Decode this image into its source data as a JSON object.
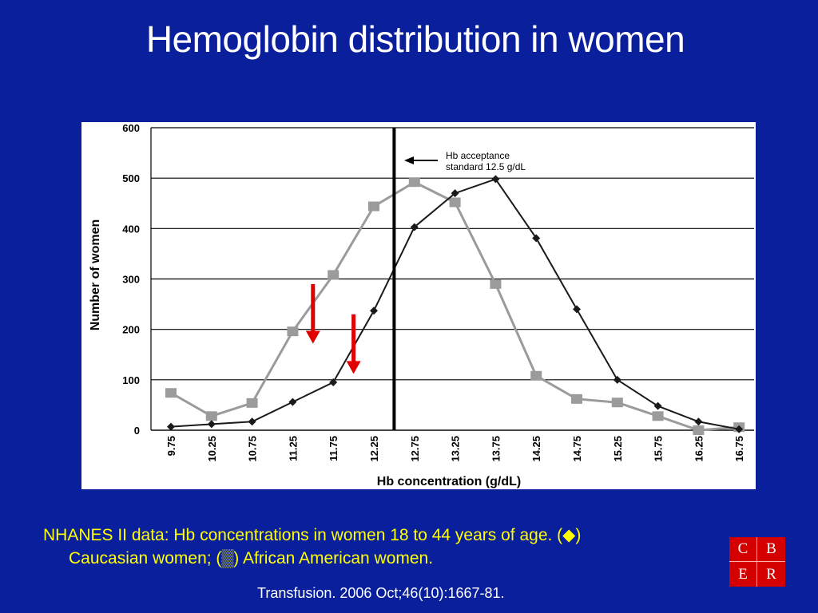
{
  "slide": {
    "title": "Hemoglobin distribution in women",
    "caption_line1": "NHANES II data: Hb concentrations in women 18 to 44 years of age. (◆)",
    "caption_line2": "Caucasian women; (▒) African American women.",
    "citation": "Transfusion. 2006 Oct;46(10):1667-81.",
    "logo_letters": [
      "C",
      "B",
      "E",
      "R"
    ]
  },
  "colors": {
    "background": "#0a1f9c",
    "caucasian_series": "#1a1a1a",
    "african_american_series": "#9b9b9b",
    "arrows": "#e00000",
    "caption": "#ffff00"
  },
  "chart_data": {
    "type": "line",
    "xlabel": "Hb concentration (g/dL)",
    "ylabel": "Number of women",
    "ylim": [
      0,
      600
    ],
    "yticks": [
      "0",
      "100",
      "200",
      "300",
      "400",
      "500",
      "600"
    ],
    "grid": true,
    "categories": [
      "9.75",
      "10.25",
      "10.75",
      "11.25",
      "11.75",
      "12.25",
      "12.75",
      "13.25",
      "13.75",
      "14.25",
      "14.75",
      "15.25",
      "15.75",
      "16.25",
      "16.75"
    ],
    "series": [
      {
        "marker": "diamond",
        "values": [
          7,
          12,
          17,
          56,
          95,
          237,
          403,
          470,
          498,
          381,
          240,
          100,
          48,
          17,
          2
        ]
      },
      {
        "marker": "square",
        "values": [
          74,
          28,
          54,
          196,
          308,
          444,
          492,
          452,
          290,
          108,
          62,
          55,
          28,
          0,
          6
        ]
      }
    ],
    "reference_line": {
      "x": 12.5
    },
    "annotation": "Hb acceptance standard 12.5 g/dL",
    "red_arrows": [
      {
        "x": 11.5,
        "y_from": 290,
        "y_to": 175
      },
      {
        "x": 12.0,
        "y_from": 230,
        "y_to": 115
      }
    ]
  }
}
